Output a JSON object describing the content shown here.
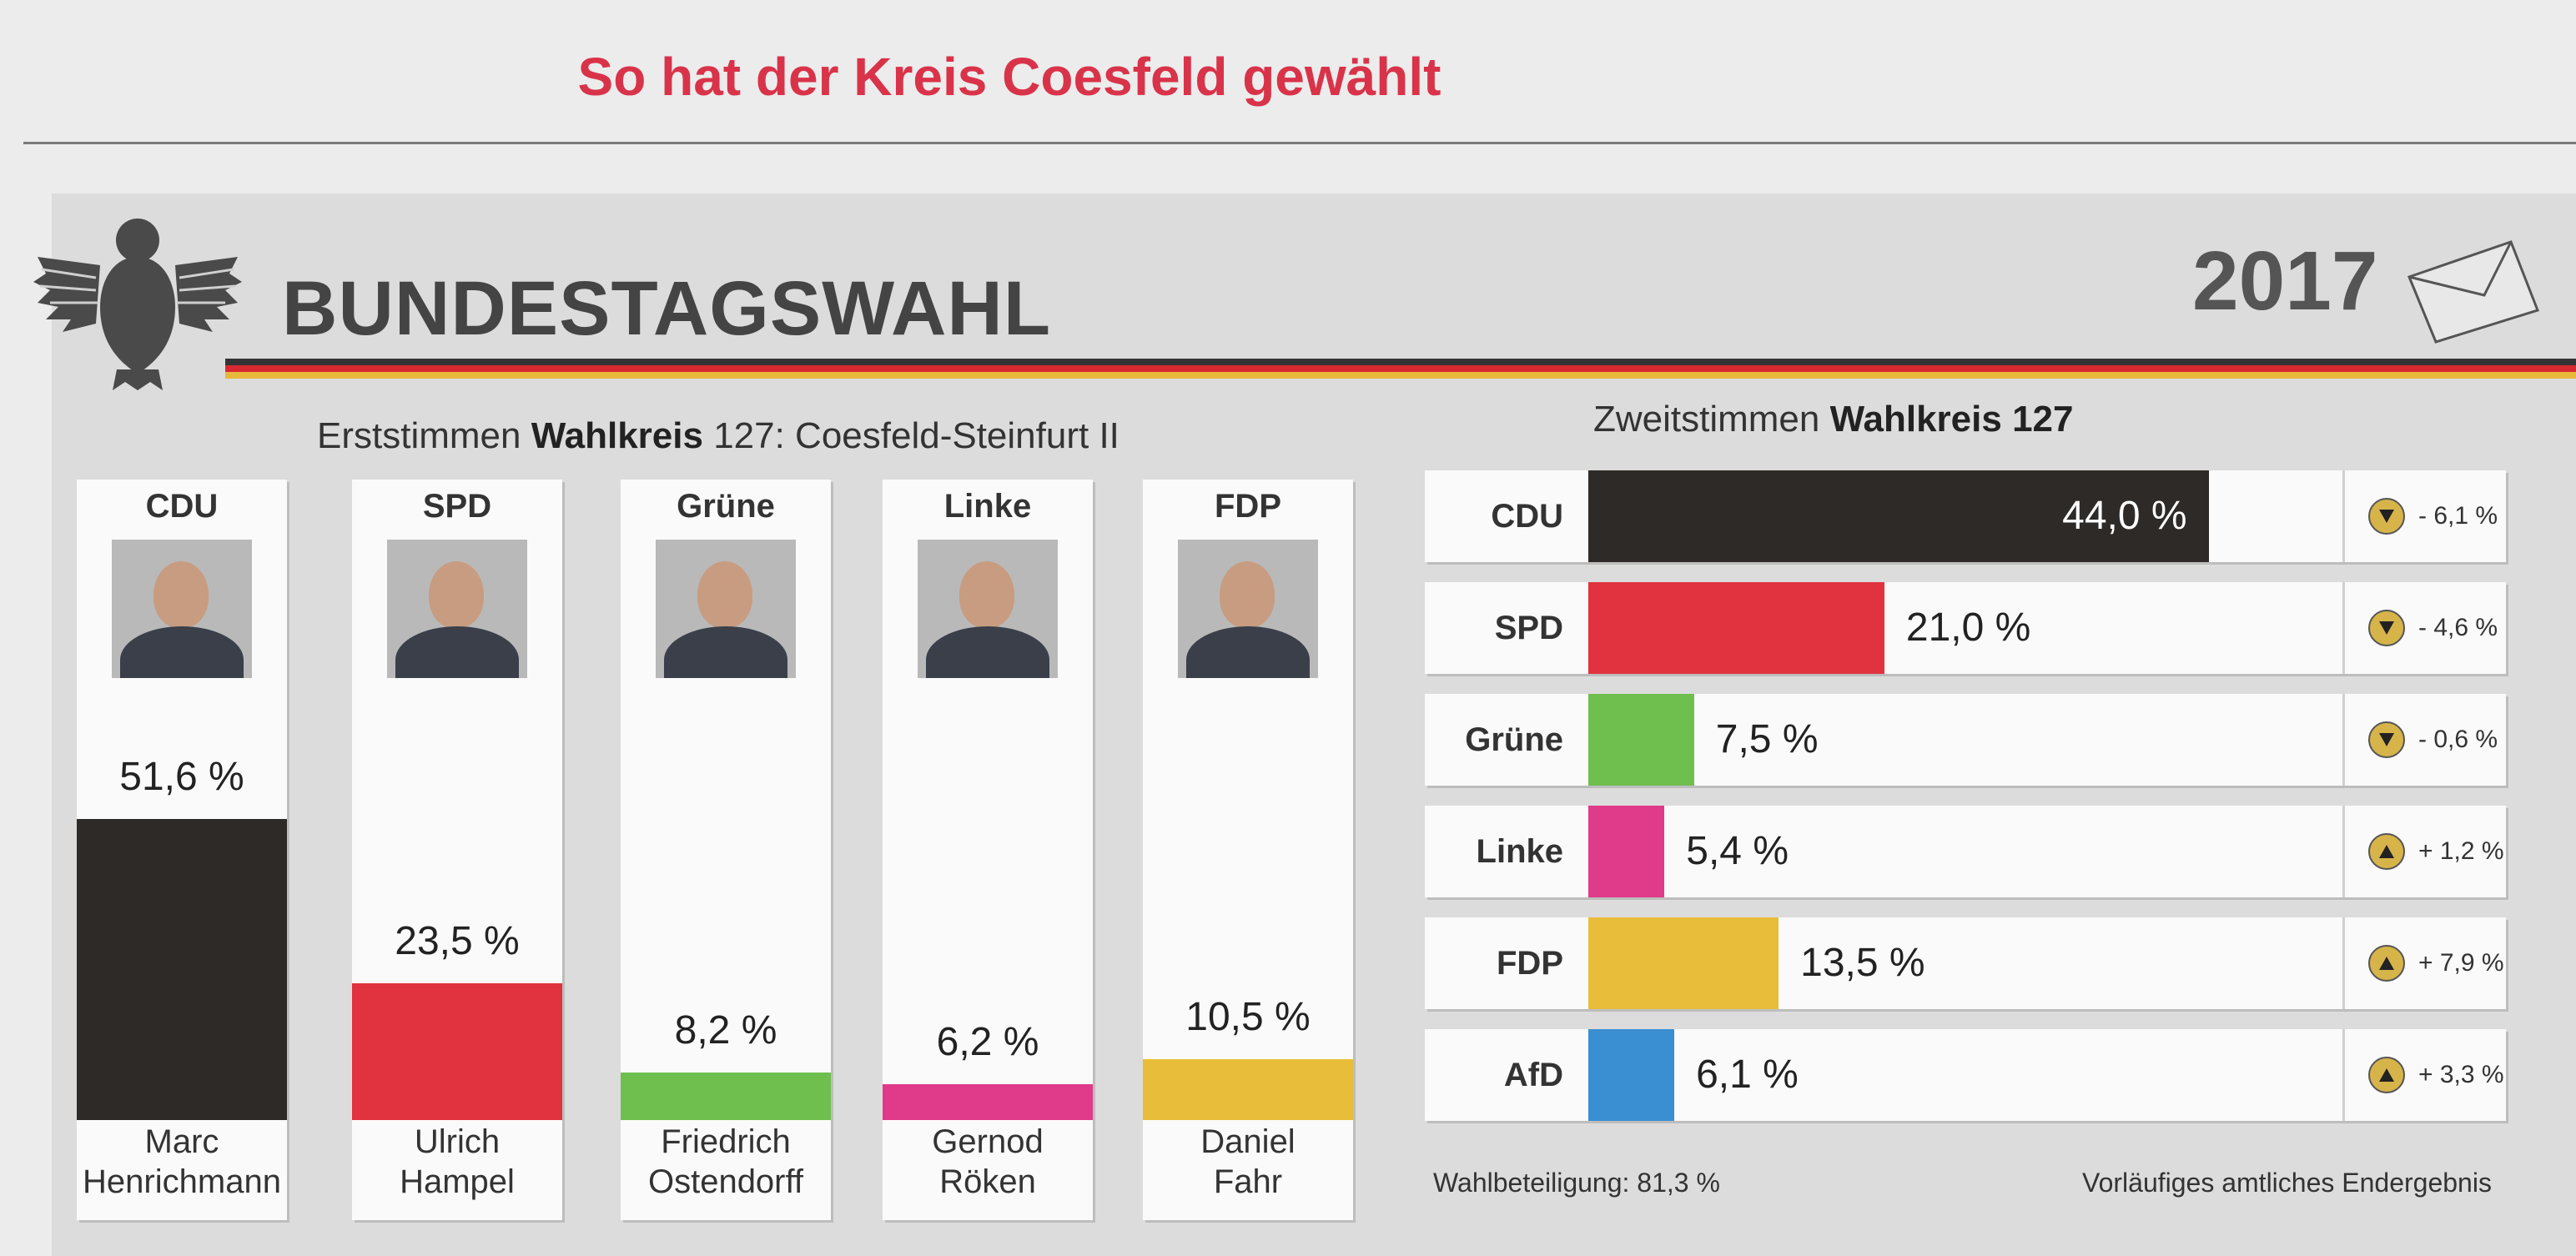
{
  "headline": "So hat der Kreis Coesfeld gewählt",
  "title": "BUNDESTAGSWAHL",
  "year": "2017",
  "erststimmen_title": {
    "prefix": "Erststimmen",
    "bold": "Wahlkreis",
    "rest": "127: Coesfeld-Steinfurt II"
  },
  "zweitstimmen_title": {
    "prefix": "Zweitstimmen",
    "bold": "Wahlkreis 127"
  },
  "footer": {
    "turnout": "Wahlbeteiligung: 81,3 %",
    "note": "Vorläufiges amtliches Endergebnis"
  },
  "icons": {
    "header": "federal-eagle-icon",
    "envelope": "ballot-envelope-icon",
    "down": "arrow-down-icon",
    "up": "arrow-up-icon"
  },
  "colors": {
    "CDU": "#2e2a27",
    "SPD": "#e0333f",
    "Grüne": "#6fbf4e",
    "Linke": "#e03a8a",
    "FDP": "#e8bd3a",
    "AfD": "#3a8fd2",
    "headline": "#d9334a"
  },
  "chart_data": [
    {
      "type": "bar",
      "title": "Erststimmen Wahlkreis 127: Coesfeld-Steinfurt II",
      "categories": [
        "CDU",
        "SPD",
        "Grüne",
        "Linke",
        "FDP"
      ],
      "candidates": [
        [
          "Marc",
          "Henrichmann"
        ],
        [
          "Ulrich",
          "Hampel"
        ],
        [
          "Friedrich",
          "Ostendorff"
        ],
        [
          "Gernod",
          "Röken"
        ],
        [
          "Daniel",
          "Fahr"
        ]
      ],
      "values": [
        51.6,
        23.5,
        8.2,
        6.2,
        10.5
      ],
      "labels": [
        "51,6 %",
        "23,5 %",
        "8,2 %",
        "6,2 %",
        "10,5 %"
      ]
    },
    {
      "type": "bar",
      "title": "Zweitstimmen Wahlkreis 127",
      "categories": [
        "CDU",
        "SPD",
        "Grüne",
        "Linke",
        "FDP",
        "AfD"
      ],
      "values": [
        44.0,
        21.0,
        7.5,
        5.4,
        13.5,
        6.1
      ],
      "labels": [
        "44,0 %",
        "21,0 %",
        "7,5 %",
        "5,4 %",
        "13,5 %",
        "6,1 %"
      ],
      "change": [
        -6.1,
        -4.6,
        -0.6,
        1.2,
        7.9,
        3.3
      ],
      "change_labels": [
        "- 6,1 %",
        "- 4,6 %",
        "- 0,6 %",
        "+ 1,2 %",
        "+ 7,9 %",
        "+ 3,3 %"
      ]
    }
  ]
}
